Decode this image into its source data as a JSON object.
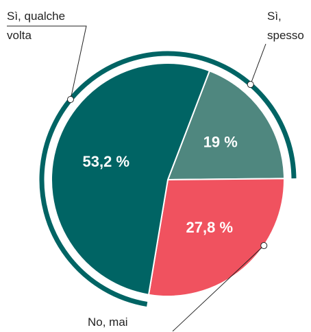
{
  "chart_data": {
    "type": "pie",
    "categories": [
      "Sì, spesso",
      "No, mai",
      "Sì, qualche volta"
    ],
    "values": [
      19,
      27.8,
      53.2
    ],
    "value_labels": [
      "19 %",
      "27,8 %",
      "53,2 %"
    ],
    "colors": [
      "#4f877f",
      "#f0525f",
      "#006464"
    ]
  }
}
